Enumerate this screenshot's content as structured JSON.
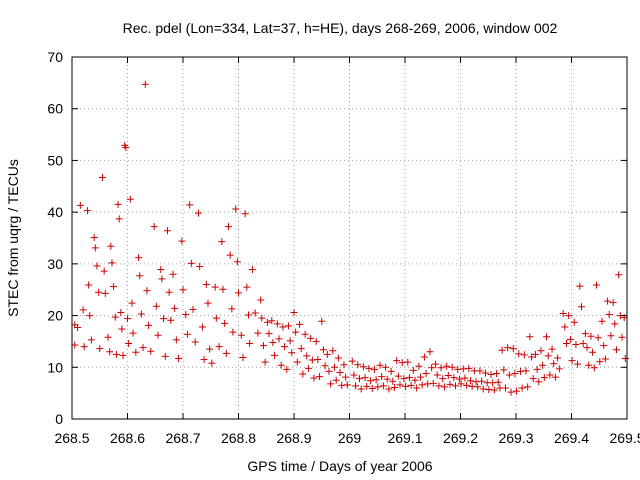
{
  "chart_data": {
    "type": "scatter",
    "title": "Rec. pdel (Lon=334, Lat=37, h=HE), days 268-269, 2006, window 002",
    "xlabel": "GPS time / Days of year 2006",
    "ylabel": "STEC from uqrg / TECUs",
    "xlim": [
      268.5,
      269.5
    ],
    "ylim": [
      0,
      70
    ],
    "x_ticks": [
      268.5,
      268.6,
      268.7,
      268.8,
      268.9,
      269.0,
      269.1,
      269.2,
      269.3,
      269.4,
      269.5
    ],
    "x_tick_labels": [
      "268.5",
      "268.6",
      "268.7",
      "268.8",
      "268.9",
      "269",
      "269.1",
      "269.2",
      "269.3",
      "269.4",
      "269.5"
    ],
    "y_ticks": [
      0,
      10,
      20,
      30,
      40,
      50,
      60,
      70
    ],
    "y_tick_labels": [
      "0",
      "10",
      "20",
      "30",
      "40",
      "50",
      "60",
      "70"
    ],
    "grid": true,
    "marker": "+",
    "color": "#cc0000",
    "series": [
      {
        "name": "STEC",
        "points": [
          [
            268.505,
            18.2
          ],
          [
            268.505,
            14.3
          ],
          [
            268.51,
            17.7
          ],
          [
            268.515,
            41.3
          ],
          [
            268.52,
            21.1
          ],
          [
            268.522,
            14.0
          ],
          [
            268.528,
            40.3
          ],
          [
            268.53,
            25.9
          ],
          [
            268.532,
            20.0
          ],
          [
            268.535,
            15.3
          ],
          [
            268.54,
            35.1
          ],
          [
            268.542,
            33.1
          ],
          [
            268.545,
            29.6
          ],
          [
            268.548,
            24.5
          ],
          [
            268.55,
            13.6
          ],
          [
            268.555,
            46.7
          ],
          [
            268.558,
            28.6
          ],
          [
            268.56,
            24.3
          ],
          [
            268.565,
            15.8
          ],
          [
            268.568,
            13.0
          ],
          [
            268.57,
            33.4
          ],
          [
            268.572,
            30.2
          ],
          [
            268.575,
            25.6
          ],
          [
            268.578,
            19.7
          ],
          [
            268.58,
            12.5
          ],
          [
            268.583,
            41.5
          ],
          [
            268.585,
            38.7
          ],
          [
            268.588,
            20.6
          ],
          [
            268.59,
            17.4
          ],
          [
            268.592,
            12.3
          ],
          [
            268.595,
            52.9
          ],
          [
            268.597,
            52.5
          ],
          [
            268.6,
            19.4
          ],
          [
            268.602,
            14.6
          ],
          [
            268.605,
            42.5
          ],
          [
            268.608,
            22.4
          ],
          [
            268.61,
            16.6
          ],
          [
            268.615,
            12.9
          ],
          [
            268.62,
            31.2
          ],
          [
            268.622,
            27.7
          ],
          [
            268.625,
            20.3
          ],
          [
            268.628,
            13.8
          ],
          [
            268.632,
            64.7
          ],
          [
            268.635,
            24.8
          ],
          [
            268.638,
            18.1
          ],
          [
            268.642,
            13.1
          ],
          [
            268.648,
            37.2
          ],
          [
            268.652,
            21.8
          ],
          [
            268.655,
            16.2
          ],
          [
            268.66,
            28.9
          ],
          [
            268.662,
            27.1
          ],
          [
            268.665,
            19.4
          ],
          [
            268.668,
            12.1
          ],
          [
            268.672,
            36.4
          ],
          [
            268.675,
            24.5
          ],
          [
            268.678,
            19.1
          ],
          [
            268.682,
            28.0
          ],
          [
            268.685,
            21.4
          ],
          [
            268.688,
            15.3
          ],
          [
            268.692,
            11.7
          ],
          [
            268.698,
            34.4
          ],
          [
            268.7,
            25.0
          ],
          [
            268.705,
            20.2
          ],
          [
            268.708,
            16.4
          ],
          [
            268.712,
            41.4
          ],
          [
            268.715,
            30.1
          ],
          [
            268.718,
            21.2
          ],
          [
            268.722,
            14.9
          ],
          [
            268.728,
            39.8
          ],
          [
            268.73,
            29.5
          ],
          [
            268.735,
            17.8
          ],
          [
            268.738,
            11.5
          ],
          [
            268.742,
            26.0
          ],
          [
            268.745,
            22.4
          ],
          [
            268.748,
            13.5
          ],
          [
            268.752,
            10.8
          ],
          [
            268.758,
            25.5
          ],
          [
            268.76,
            19.5
          ],
          [
            268.765,
            14.0
          ],
          [
            268.77,
            34.3
          ],
          [
            268.772,
            25.1
          ],
          [
            268.775,
            18.5
          ],
          [
            268.778,
            12.7
          ],
          [
            268.782,
            37.2
          ],
          [
            268.785,
            31.7
          ],
          [
            268.788,
            21.3
          ],
          [
            268.79,
            16.8
          ],
          [
            268.795,
            40.6
          ],
          [
            268.798,
            30.4
          ],
          [
            268.8,
            24.4
          ],
          [
            268.805,
            16.2
          ],
          [
            268.808,
            11.9
          ],
          [
            268.812,
            39.7
          ],
          [
            268.815,
            25.5
          ],
          [
            268.818,
            20.1
          ],
          [
            268.82,
            14.6
          ],
          [
            268.825,
            28.9
          ],
          [
            268.83,
            20.5
          ],
          [
            268.835,
            16.6
          ],
          [
            268.84,
            23.0
          ],
          [
            268.842,
            19.5
          ],
          [
            268.845,
            14.2
          ],
          [
            268.848,
            11.0
          ],
          [
            268.852,
            18.7
          ],
          [
            268.855,
            16.5
          ],
          [
            268.86,
            19.0
          ],
          [
            268.862,
            14.8
          ],
          [
            268.865,
            12.3
          ],
          [
            268.87,
            18.4
          ],
          [
            268.873,
            15.5
          ],
          [
            268.877,
            10.4
          ],
          [
            268.88,
            17.8
          ],
          [
            268.883,
            14.0
          ],
          [
            268.887,
            9.6
          ],
          [
            268.89,
            18.0
          ],
          [
            268.893,
            15.1
          ],
          [
            268.896,
            12.8
          ],
          [
            268.9,
            20.6
          ],
          [
            268.903,
            16.8
          ],
          [
            268.906,
            11.0
          ],
          [
            268.91,
            18.3
          ],
          [
            268.913,
            13.6
          ],
          [
            268.916,
            8.7
          ],
          [
            268.92,
            16.4
          ],
          [
            268.923,
            12.2
          ],
          [
            268.926,
            9.8
          ],
          [
            268.93,
            15.6
          ],
          [
            268.933,
            11.4
          ],
          [
            268.936,
            7.9
          ],
          [
            268.94,
            15.0
          ],
          [
            268.943,
            11.5
          ],
          [
            268.946,
            8.2
          ],
          [
            268.95,
            18.9
          ],
          [
            268.953,
            13.4
          ],
          [
            268.956,
            10.3
          ],
          [
            268.96,
            12.5
          ],
          [
            268.963,
            9.2
          ],
          [
            268.966,
            6.8
          ],
          [
            268.97,
            13.2
          ],
          [
            268.973,
            10.0
          ],
          [
            268.976,
            7.5
          ],
          [
            268.98,
            11.8
          ],
          [
            268.983,
            9.0
          ],
          [
            268.986,
            6.5
          ],
          [
            268.99,
            10.5
          ],
          [
            268.993,
            8.1
          ],
          [
            268.996,
            6.6
          ],
          [
            269.005,
            11.2
          ],
          [
            269.008,
            8.5
          ],
          [
            269.011,
            6.4
          ],
          [
            269.015,
            10.5
          ],
          [
            269.018,
            7.8
          ],
          [
            269.021,
            5.8
          ],
          [
            269.025,
            10.1
          ],
          [
            269.028,
            8.0
          ],
          [
            269.031,
            6.3
          ],
          [
            269.035,
            9.8
          ],
          [
            269.038,
            7.4
          ],
          [
            269.041,
            5.9
          ],
          [
            269.045,
            9.6
          ],
          [
            269.048,
            7.6
          ],
          [
            269.051,
            6.2
          ],
          [
            269.055,
            10.4
          ],
          [
            269.058,
            8.2
          ],
          [
            269.061,
            6.4
          ],
          [
            269.065,
            10.0
          ],
          [
            269.068,
            7.7
          ],
          [
            269.071,
            5.8
          ],
          [
            269.075,
            9.2
          ],
          [
            269.078,
            7.3
          ],
          [
            269.081,
            6.1
          ],
          [
            269.085,
            11.3
          ],
          [
            269.088,
            8.3
          ],
          [
            269.091,
            6.6
          ],
          [
            269.095,
            10.9
          ],
          [
            269.098,
            7.8
          ],
          [
            269.101,
            6.3
          ],
          [
            269.105,
            11.0
          ],
          [
            269.108,
            8.0
          ],
          [
            269.111,
            6.5
          ],
          [
            269.115,
            9.4
          ],
          [
            269.118,
            7.5
          ],
          [
            269.121,
            6.0
          ],
          [
            269.125,
            10.2
          ],
          [
            269.128,
            8.1
          ],
          [
            269.131,
            6.6
          ],
          [
            269.135,
            12.0
          ],
          [
            269.138,
            8.8
          ],
          [
            269.141,
            6.8
          ],
          [
            269.145,
            13.0
          ],
          [
            269.148,
            9.9
          ],
          [
            269.151,
            6.9
          ],
          [
            269.155,
            10.6
          ],
          [
            269.158,
            8.5
          ],
          [
            269.161,
            6.4
          ],
          [
            269.165,
            9.9
          ],
          [
            269.168,
            7.8
          ],
          [
            269.171,
            6.2
          ],
          [
            269.175,
            10.2
          ],
          [
            269.178,
            8.4
          ],
          [
            269.181,
            6.7
          ],
          [
            269.185,
            10.0
          ],
          [
            269.188,
            8.0
          ],
          [
            269.191,
            6.4
          ],
          [
            269.195,
            9.6
          ],
          [
            269.198,
            7.7
          ],
          [
            269.201,
            6.8
          ],
          [
            269.205,
            9.7
          ],
          [
            269.208,
            7.9
          ],
          [
            269.211,
            6.5
          ],
          [
            269.215,
            9.8
          ],
          [
            269.218,
            7.4
          ],
          [
            269.221,
            6.3
          ],
          [
            269.225,
            9.3
          ],
          [
            269.228,
            7.2
          ],
          [
            269.231,
            6.2
          ],
          [
            269.235,
            9.3
          ],
          [
            269.238,
            7.3
          ],
          [
            269.241,
            5.8
          ],
          [
            269.245,
            8.9
          ],
          [
            269.248,
            7.0
          ],
          [
            269.251,
            5.7
          ],
          [
            269.255,
            8.6
          ],
          [
            269.258,
            7.0
          ],
          [
            269.261,
            5.6
          ],
          [
            269.265,
            8.8
          ],
          [
            269.268,
            7.1
          ],
          [
            269.271,
            6.0
          ],
          [
            269.275,
            13.3
          ],
          [
            269.278,
            9.5
          ],
          [
            269.281,
            6.0
          ],
          [
            269.285,
            13.8
          ],
          [
            269.288,
            8.5
          ],
          [
            269.291,
            5.2
          ],
          [
            269.295,
            13.6
          ],
          [
            269.298,
            8.8
          ],
          [
            269.301,
            5.4
          ],
          [
            269.305,
            12.6
          ],
          [
            269.308,
            9.2
          ],
          [
            269.311,
            6.0
          ],
          [
            269.315,
            12.4
          ],
          [
            269.318,
            9.3
          ],
          [
            269.321,
            6.2
          ],
          [
            269.325,
            15.9
          ],
          [
            269.328,
            12.0
          ],
          [
            269.331,
            7.8
          ],
          [
            269.335,
            12.5
          ],
          [
            269.338,
            9.6
          ],
          [
            269.341,
            7.2
          ],
          [
            269.345,
            13.2
          ],
          [
            269.348,
            10.4
          ],
          [
            269.351,
            8.0
          ],
          [
            269.355,
            15.9
          ],
          [
            269.358,
            12.2
          ],
          [
            269.361,
            8.5
          ],
          [
            269.365,
            13.5
          ],
          [
            269.368,
            10.7
          ],
          [
            269.371,
            8.1
          ],
          [
            269.375,
            11.8
          ],
          [
            269.378,
            9.7
          ],
          [
            269.385,
            20.4
          ],
          [
            269.388,
            17.8
          ],
          [
            269.391,
            14.6
          ],
          [
            269.395,
            20.0
          ],
          [
            269.398,
            15.4
          ],
          [
            269.401,
            11.3
          ],
          [
            269.405,
            18.7
          ],
          [
            269.408,
            14.4
          ],
          [
            269.411,
            10.6
          ],
          [
            269.415,
            25.7
          ],
          [
            269.418,
            21.7
          ],
          [
            269.421,
            14.6
          ],
          [
            269.425,
            16.5
          ],
          [
            269.428,
            13.8
          ],
          [
            269.431,
            10.4
          ],
          [
            269.435,
            16.0
          ],
          [
            269.438,
            12.9
          ],
          [
            269.441,
            9.9
          ],
          [
            269.445,
            25.9
          ],
          [
            269.448,
            15.7
          ],
          [
            269.451,
            11.1
          ],
          [
            269.455,
            18.9
          ],
          [
            269.458,
            14.2
          ],
          [
            269.461,
            11.6
          ],
          [
            269.465,
            22.8
          ],
          [
            269.468,
            20.2
          ],
          [
            269.471,
            16.1
          ],
          [
            269.475,
            22.5
          ],
          [
            269.478,
            18.4
          ],
          [
            269.481,
            13.4
          ],
          [
            269.485,
            27.9
          ],
          [
            269.488,
            20.0
          ],
          [
            269.491,
            15.8
          ],
          [
            269.495,
            19.6
          ],
          [
            269.497,
            11.7
          ]
        ]
      }
    ]
  }
}
